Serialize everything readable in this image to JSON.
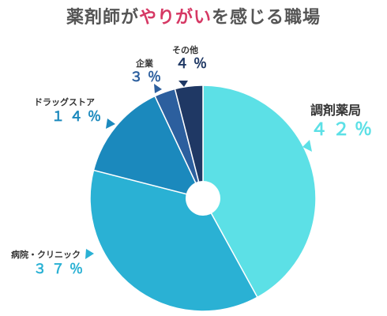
{
  "title": {
    "pre": "薬剤師が",
    "highlight": "やりがい",
    "post": "を感じる職場"
  },
  "chart_data": {
    "type": "pie",
    "title": "薬剤師がやりがいを感じる職場",
    "labels": [
      "調剤薬局",
      "病院・クリニック",
      "ドラッグストア",
      "企業",
      "その他"
    ],
    "values": [
      42,
      37,
      14,
      3,
      4
    ],
    "value_labels": [
      "４２％",
      "３７％",
      "１４％",
      "３％",
      "４％"
    ],
    "colors": [
      "#5ce0e6",
      "#2ab1d4",
      "#1b89bd",
      "#2c5f9e",
      "#1f3864"
    ],
    "label_colors": [
      "#5ce0e6",
      "#2ab1d4",
      "#1b89bd",
      "#2c5f9e",
      "#1f3864"
    ],
    "start_angle_deg": 0,
    "direction": "clockwise",
    "donut_hole": true
  }
}
